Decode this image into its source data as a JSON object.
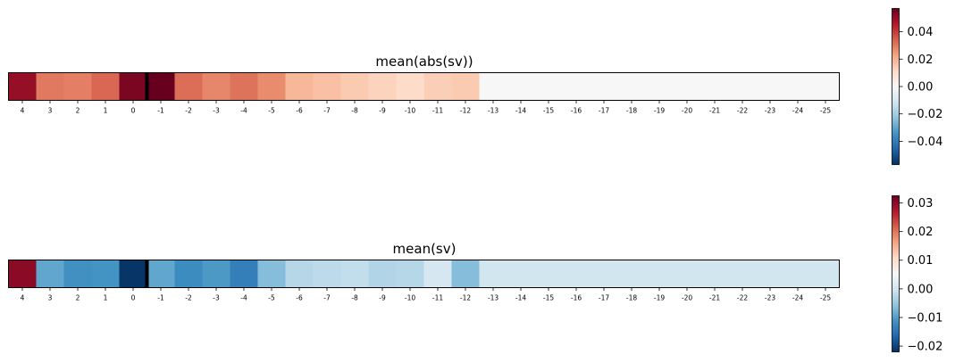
{
  "chart_data": [
    {
      "type": "heatmap",
      "title": "mean(abs(sv))",
      "categories": [
        "4",
        "3",
        "2",
        "1",
        "0",
        "-1",
        "-2",
        "-3",
        "-4",
        "-5",
        "-6",
        "-7",
        "-8",
        "-9",
        "-10",
        "-11",
        "-12",
        "-13",
        "-14",
        "-15",
        "-16",
        "-17",
        "-18",
        "-19",
        "-20",
        "-21",
        "-22",
        "-23",
        "-24",
        "-25"
      ],
      "values": [
        0.05,
        0.03,
        0.029,
        0.033,
        0.054,
        0.057,
        0.032,
        0.028,
        0.031,
        0.027,
        0.019,
        0.017,
        0.015,
        0.013,
        0.011,
        0.014,
        0.015,
        0,
        0,
        0,
        0,
        0,
        0,
        0,
        0,
        0,
        0,
        0,
        0,
        0
      ],
      "colormap": "RdBu_r",
      "vlim": [
        -0.057,
        0.057
      ],
      "colorbar_ticks": [
        "0.04",
        "0.02",
        "0.00",
        "−0.02",
        "−0.04"
      ],
      "colorbar_tick_values": [
        0.04,
        0.02,
        0.0,
        -0.02,
        -0.04
      ],
      "divider_after_index": 4
    },
    {
      "type": "heatmap",
      "title": "mean(sv)",
      "categories": [
        "4",
        "3",
        "2",
        "1",
        "0",
        "-1",
        "-2",
        "-3",
        "-4",
        "-5",
        "-6",
        "-7",
        "-8",
        "-9",
        "-10",
        "-11",
        "-12",
        "-13",
        "-14",
        "-15",
        "-16",
        "-17",
        "-18",
        "-19",
        "-20",
        "-21",
        "-22",
        "-23",
        "-24",
        "-25"
      ],
      "values": [
        0.03,
        -0.009,
        -0.0115,
        -0.011,
        -0.0215,
        -0.009,
        -0.012,
        -0.0105,
        -0.0135,
        -0.0065,
        -0.0025,
        -0.002,
        -0.0015,
        -0.003,
        -0.0025,
        0.0005,
        -0.0065,
        0,
        0,
        0,
        0,
        0,
        0,
        0,
        0,
        0,
        0,
        0,
        0,
        0
      ],
      "colormap": "RdBu_r",
      "vlim": [
        -0.022,
        0.0325
      ],
      "colorbar_ticks": [
        "0.03",
        "0.02",
        "0.01",
        "0.00",
        "−0.01",
        "−0.02"
      ],
      "colorbar_tick_values": [
        0.03,
        0.02,
        0.01,
        0.0,
        -0.01,
        -0.02
      ],
      "divider_after_index": 4
    }
  ]
}
